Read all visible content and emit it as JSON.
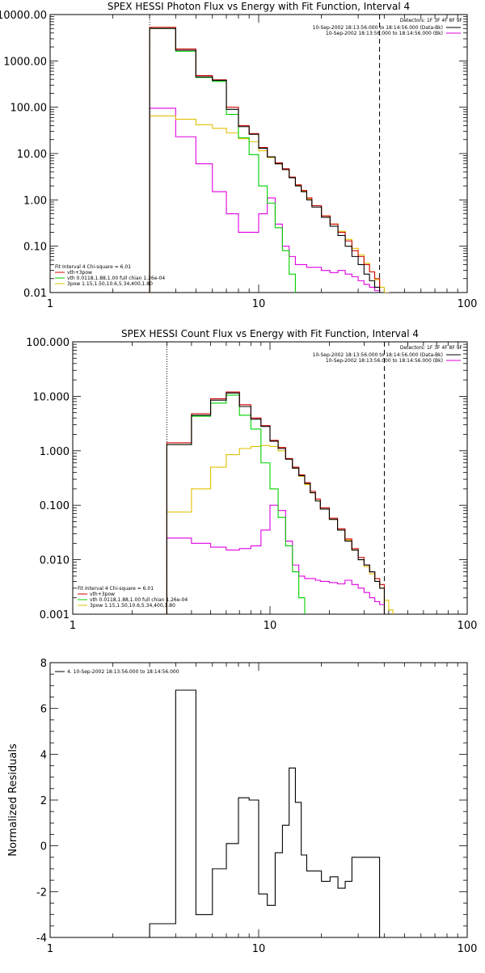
{
  "chart_data": [
    {
      "type": "line",
      "title": "SPEX HESSI Photon Flux vs Energy with Fit Function, Interval 4",
      "xlabel": "",
      "ylabel": "",
      "xscale": "log",
      "yscale": "log",
      "xlim": [
        1,
        100
      ],
      "ylim": [
        0.01,
        10000
      ],
      "x_ticks": [
        1,
        10,
        100
      ],
      "x_tick_labels": [
        "1",
        "10",
        "100"
      ],
      "y_ticks": [
        0.01,
        0.1,
        1,
        10,
        100,
        1000,
        10000
      ],
      "y_tick_labels": [
        "0.01",
        "0.10",
        "1.00",
        "10.00",
        "100.00",
        "1000.00",
        "10000.00"
      ],
      "detectors": "Detectors: 1F 3F 4F 8F 9F",
      "legend_right": [
        {
          "text": "10-Sep-2002 18:13:56.000 to 18:14:56.000 (Data-Bk)",
          "color": "#000000"
        },
        {
          "text": "10-Sep-2002 18:13:56.000 to 18:14:56.000 (Bk)",
          "color": "#e000e0"
        }
      ],
      "fit_info": "Fit Interval 4   Chi-square = 6.01",
      "legend_left": [
        {
          "text": "vth+3pow",
          "color": "#d00000"
        },
        {
          "text": "vth 0.0118,1.88,1.00  full chian 1.26e-04",
          "color": "#00d000"
        },
        {
          "text": "3pow 1.15,1.50,10.6,5.34,400,1.80",
          "color": "#e0c000"
        }
      ],
      "vlines": [
        {
          "x": 3,
          "style": "dotted"
        },
        {
          "x": 38,
          "style": "dashed"
        }
      ],
      "series": [
        {
          "name": "10-Sep-2002 18:13:56.000 to 18:14:56.000 (Data-Bk)",
          "color": "#000000",
          "x": [
            3,
            4,
            5,
            6,
            7,
            8,
            9,
            10,
            11,
            12,
            13,
            14,
            15,
            16,
            17,
            18,
            20,
            22,
            24,
            26,
            28,
            30,
            32,
            34,
            36
          ],
          "values": [
            5000,
            1700,
            450,
            380,
            90,
            38,
            26,
            13,
            8.5,
            6.0,
            4.5,
            3.0,
            2.0,
            1.5,
            1.0,
            0.7,
            0.42,
            0.27,
            0.17,
            0.1,
            0.06,
            0.04,
            0.025,
            0.018,
            0.013
          ]
        },
        {
          "name": "vth+3pow",
          "color": "#d00000",
          "x": [
            3,
            4,
            5,
            6,
            7,
            8,
            9,
            10,
            11,
            12,
            13,
            14,
            15,
            16,
            17,
            18,
            20,
            22,
            24,
            26,
            28,
            30,
            32,
            34,
            36
          ],
          "values": [
            5300,
            1800,
            480,
            390,
            100,
            40,
            27,
            13.5,
            8.5,
            6.3,
            4.7,
            3.1,
            2.1,
            1.6,
            1.1,
            0.75,
            0.45,
            0.3,
            0.2,
            0.13,
            0.08,
            0.06,
            0.04,
            0.028,
            0.02
          ]
        },
        {
          "name": "10-Sep-2002 18:13:56.000 to 18:14:56.000 (Bk)",
          "color": "#e000e0",
          "x": [
            3,
            4,
            5,
            6,
            7,
            8,
            9,
            10,
            11,
            12,
            13,
            14,
            15,
            16,
            17,
            18,
            20,
            22,
            24,
            26,
            28,
            30,
            32,
            34,
            36
          ],
          "values": [
            95,
            23,
            6,
            1.5,
            0.5,
            0.2,
            0.2,
            0.5,
            1.1,
            0.3,
            0.1,
            0.06,
            0.04,
            0.04,
            0.035,
            0.035,
            0.03,
            0.027,
            0.03,
            0.025,
            0.022,
            0.018,
            0.015,
            0.013,
            0.011
          ]
        },
        {
          "name": "vth 0.0118,1.88,1.00  full chian 1.26e-04",
          "color": "#00d000",
          "x": [
            3,
            4,
            5,
            6,
            7,
            8,
            9,
            10,
            11,
            12,
            13,
            14,
            15
          ],
          "values": [
            5000,
            1600,
            440,
            360,
            70,
            22,
            9.5,
            2.0,
            0.85,
            0.25,
            0.08,
            0.025,
            0.009
          ]
        },
        {
          "name": "3pow 1.15,1.50,10.6,5.34,400,1.80",
          "color": "#e0c000",
          "x": [
            3,
            4,
            5,
            6,
            7,
            8,
            9,
            10,
            11,
            12,
            13,
            14,
            15,
            16,
            17,
            18,
            20,
            22,
            24,
            26,
            28,
            30,
            32,
            34,
            36,
            38,
            40
          ],
          "values": [
            65,
            55,
            42,
            35,
            28,
            21,
            18,
            11.5,
            8.2,
            6.0,
            4.5,
            3.0,
            2.1,
            1.55,
            1.05,
            0.75,
            0.45,
            0.3,
            0.21,
            0.14,
            0.09,
            0.065,
            0.043,
            0.028,
            0.019,
            0.013,
            0.01
          ]
        }
      ]
    },
    {
      "type": "line",
      "title": "SPEX HESSI Count Flux vs Energy with Fit Function, Interval 4",
      "xlabel": "",
      "ylabel": "",
      "xscale": "log",
      "yscale": "log",
      "xlim": [
        1,
        100
      ],
      "ylim": [
        0.001,
        100
      ],
      "x_ticks": [
        1,
        10,
        100
      ],
      "x_tick_labels": [
        "1",
        "10",
        "100"
      ],
      "y_ticks": [
        0.001,
        0.01,
        0.1,
        1,
        10,
        100
      ],
      "y_tick_labels": [
        "0.001",
        "0.010",
        "0.100",
        "1.000",
        "10.000",
        "100.000"
      ],
      "detectors": "Detectors: 1F 3F 4F 8F 9F",
      "legend_right": [
        {
          "text": "10-Sep-2002 18:13:56.000 to 18:14:56.000 (Data-Bk)",
          "color": "#000000"
        },
        {
          "text": "10-Sep-2002 18:13:56.000 to 18:14:56.000 (Bk)",
          "color": "#e000e0"
        }
      ],
      "fit_info": "Fit Interval 4   Chi-square = 6.01",
      "legend_left": [
        {
          "text": "vth+3pow",
          "color": "#d00000"
        },
        {
          "text": "vth 0.0118,1.88,1.00  full chian 1.26e-04",
          "color": "#00d000"
        },
        {
          "text": "3pow 1.15,1.50,10.6,5.34,400,1.80",
          "color": "#e0c000"
        }
      ],
      "vlines": [
        {
          "x": 3,
          "style": "dotted"
        },
        {
          "x": 38,
          "style": "dashed"
        }
      ],
      "series": [
        {
          "name": "10-Sep-2002 18:13:56.000 to 18:14:56.000 (Data-Bk)",
          "color": "#000000",
          "x": [
            3,
            4,
            5,
            6,
            7,
            8,
            9,
            10,
            11,
            12,
            13,
            14,
            15,
            16,
            17,
            18,
            20,
            22,
            24,
            26,
            28,
            30,
            32,
            34,
            36
          ],
          "values": [
            1.3,
            4.5,
            8.5,
            11.5,
            6.5,
            3.8,
            2.8,
            1.5,
            1.1,
            0.7,
            0.48,
            0.35,
            0.25,
            0.17,
            0.12,
            0.085,
            0.055,
            0.035,
            0.022,
            0.015,
            0.01,
            0.008,
            0.006,
            0.004,
            0.003
          ]
        },
        {
          "name": "vth+3pow",
          "color": "#d00000",
          "x": [
            3,
            4,
            5,
            6,
            7,
            8,
            9,
            10,
            11,
            12,
            13,
            14,
            15,
            16,
            17,
            18,
            20,
            22,
            24,
            26,
            28,
            30,
            32,
            34,
            36
          ],
          "values": [
            1.4,
            4.8,
            9.0,
            12.0,
            7.0,
            4.0,
            2.9,
            1.55,
            1.15,
            0.72,
            0.5,
            0.36,
            0.26,
            0.18,
            0.13,
            0.09,
            0.058,
            0.037,
            0.024,
            0.016,
            0.011,
            0.008,
            0.006,
            0.0045,
            0.0035
          ]
        },
        {
          "name": "10-Sep-2002 18:13:56.000 to 18:14:56.000 (Bk)",
          "color": "#e000e0",
          "x": [
            3,
            4,
            5,
            6,
            7,
            8,
            9,
            10,
            11,
            12,
            13,
            14,
            15,
            16,
            17,
            18,
            20,
            22,
            24,
            26,
            28,
            30,
            32,
            34,
            36
          ],
          "values": [
            0.025,
            0.02,
            0.017,
            0.015,
            0.016,
            0.018,
            0.035,
            0.1,
            0.08,
            0.022,
            0.008,
            0.005,
            0.0045,
            0.0045,
            0.0042,
            0.004,
            0.0038,
            0.0036,
            0.0042,
            0.0035,
            0.003,
            0.0025,
            0.002,
            0.0017,
            0.0015
          ]
        },
        {
          "name": "vth 0.0118,1.88,1.00  full chian 1.26e-04",
          "color": "#00d000",
          "x": [
            3,
            4,
            5,
            6,
            7,
            8,
            9,
            10,
            11,
            12,
            13,
            14,
            15
          ],
          "values": [
            1.3,
            4.3,
            7.5,
            10.5,
            4.5,
            2.5,
            0.6,
            0.2,
            0.06,
            0.018,
            0.006,
            0.002,
            0.0009
          ]
        },
        {
          "name": "3pow 1.15,1.50,10.6,5.34,400,1.80",
          "color": "#e0c000",
          "x": [
            3,
            4,
            5,
            6,
            7,
            8,
            9,
            10,
            11,
            12,
            13,
            14,
            15,
            16,
            17,
            18,
            20,
            22,
            24,
            26,
            28,
            30,
            32,
            34,
            36,
            38,
            40
          ],
          "values": [
            0.075,
            0.2,
            0.5,
            0.85,
            1.1,
            1.2,
            1.25,
            1.2,
            1.0,
            0.7,
            0.48,
            0.34,
            0.24,
            0.17,
            0.12,
            0.085,
            0.055,
            0.035,
            0.023,
            0.015,
            0.01,
            0.0075,
            0.0055,
            0.004,
            0.003,
            0.0018,
            0.0012
          ]
        }
      ]
    },
    {
      "type": "line",
      "title": "",
      "xlabel": "",
      "ylabel": "Normalized Residuals",
      "xscale": "log",
      "yscale": "linear",
      "xlim": [
        1,
        100
      ],
      "ylim": [
        -4,
        8
      ],
      "x_ticks": [
        1,
        10,
        100
      ],
      "x_tick_labels": [
        "1",
        "10",
        "100"
      ],
      "y_ticks": [
        -4,
        -2,
        0,
        2,
        4,
        6,
        8
      ],
      "y_tick_labels": [
        "-4",
        "-2",
        "0",
        "2",
        "4",
        "6",
        "8"
      ],
      "legend_left": [
        {
          "text": "4. 10-Sep-2002 18:13:56.000 to 18:14:56.000",
          "color": "#000000"
        }
      ],
      "series": [
        {
          "name": "4. 10-Sep-2002 18:13:56.000 to 18:14:56.000",
          "color": "#000000",
          "x": [
            3,
            4,
            5,
            6,
            7,
            8,
            9,
            10,
            11,
            12,
            13,
            14,
            15,
            16,
            17,
            18,
            20,
            22,
            24,
            26,
            28,
            30,
            32,
            34,
            36
          ],
          "values": [
            -3.4,
            6.8,
            -3.0,
            -1.0,
            0.1,
            2.1,
            2.0,
            -2.1,
            -2.6,
            -0.3,
            0.9,
            3.4,
            1.9,
            -0.4,
            -1.1,
            -1.1,
            -1.55,
            -1.35,
            -1.85,
            -1.55,
            -0.5,
            -0.5,
            -0.5,
            -0.5,
            -0.5
          ]
        }
      ]
    }
  ]
}
